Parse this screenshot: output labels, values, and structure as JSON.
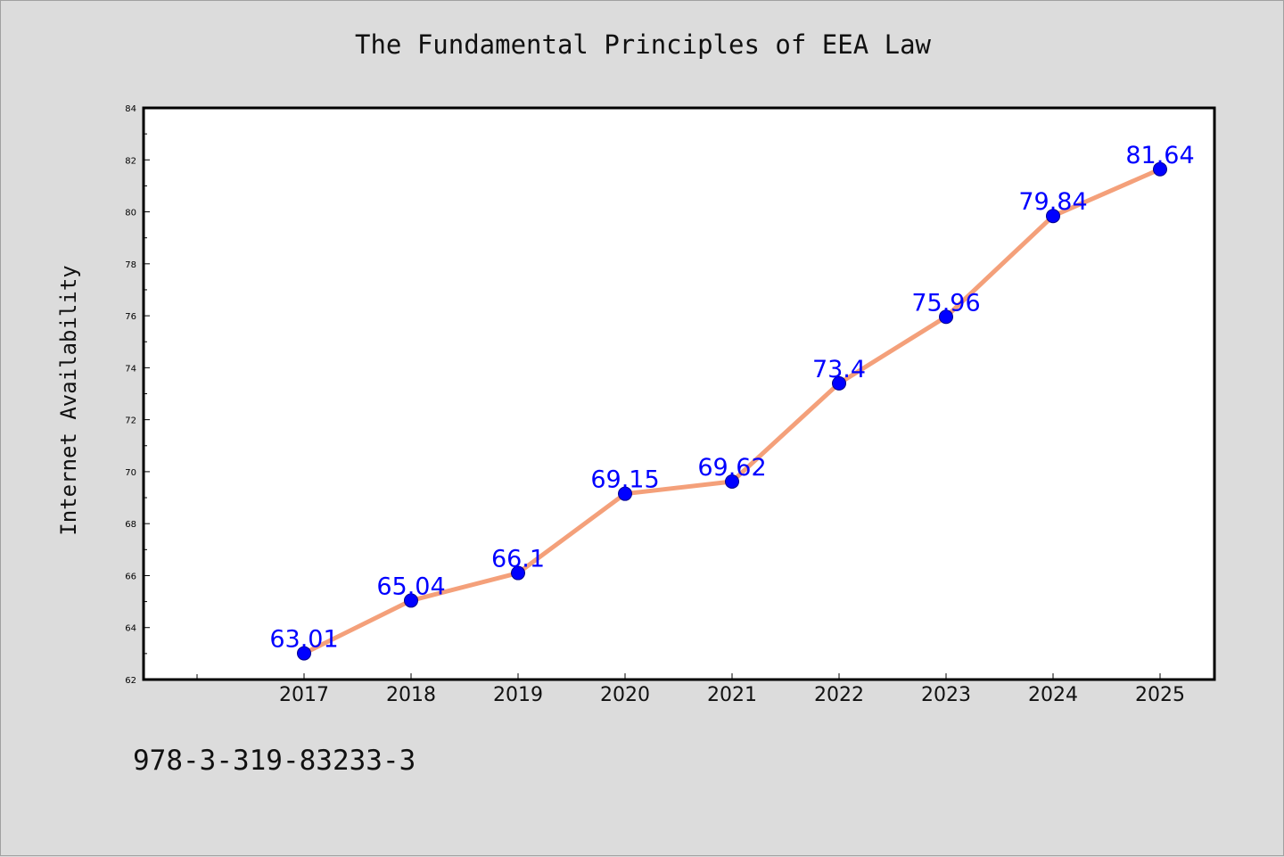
{
  "title": "The Fundamental Principles of EEA Law",
  "footer_text": "978-3-319-83233-3",
  "colors": {
    "background": "#dcdcdc",
    "plot_background": "#ffffff",
    "line": "#f4a07a",
    "marker": "#0000ff",
    "data_label": "#0000ff"
  },
  "chart_data": {
    "type": "line",
    "title": "The Fundamental Principles of EEA Law",
    "xlabel": "",
    "ylabel": "Internet Availability",
    "x": [
      "2017",
      "2018",
      "2019",
      "2020",
      "2021",
      "2022",
      "2023",
      "2024",
      "2025"
    ],
    "series": [
      {
        "values": [
          63.01,
          65.04,
          66.1,
          69.15,
          69.62,
          73.4,
          75.96,
          79.84,
          81.64
        ],
        "labels": [
          "63.01",
          "65.04",
          "66.1",
          "69.15",
          "69.62",
          "73.4",
          "75.96",
          "79.84",
          "81.64"
        ]
      }
    ],
    "ylim": [
      62,
      84
    ],
    "yticks": [
      62,
      64,
      66,
      68,
      70,
      72,
      74,
      76,
      78,
      80,
      82,
      84
    ],
    "grid": false,
    "legend": "none"
  }
}
